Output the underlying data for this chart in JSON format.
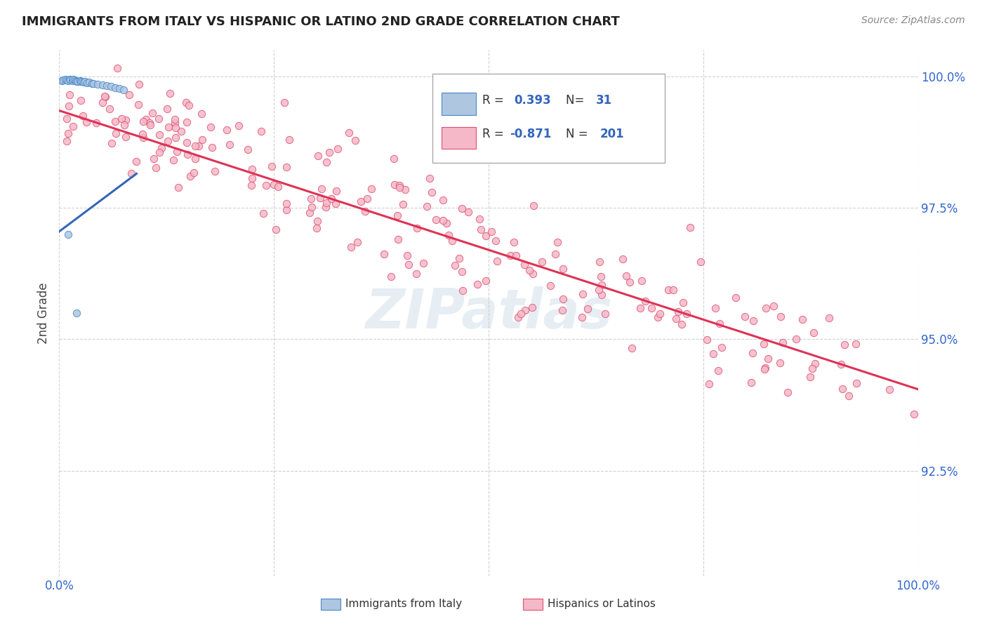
{
  "title": "IMMIGRANTS FROM ITALY VS HISPANIC OR LATINO 2ND GRADE CORRELATION CHART",
  "source": "Source: ZipAtlas.com",
  "ylabel": "2nd Grade",
  "ytick_labels": [
    "100.0%",
    "97.5%",
    "95.0%",
    "92.5%"
  ],
  "ytick_values": [
    1.0,
    0.975,
    0.95,
    0.925
  ],
  "xlim": [
    0.0,
    1.0
  ],
  "ylim": [
    0.905,
    1.005
  ],
  "blue_R": 0.393,
  "blue_N": 31,
  "pink_R": -0.871,
  "pink_N": 201,
  "blue_color": "#aec6e0",
  "pink_color": "#f4b8c8",
  "blue_edge_color": "#4488cc",
  "pink_edge_color": "#e05070",
  "blue_line_color": "#3366bb",
  "pink_line_color": "#dd3355",
  "legend_label_blue": "Immigrants from Italy",
  "legend_label_pink": "Hispanics or Latinos",
  "watermark": "ZIPatlas",
  "background_color": "#ffffff",
  "grid_color": "#cccccc",
  "title_color": "#222222",
  "source_color": "#888888",
  "axis_label_color": "#3366cc",
  "ylabel_color": "#444444"
}
